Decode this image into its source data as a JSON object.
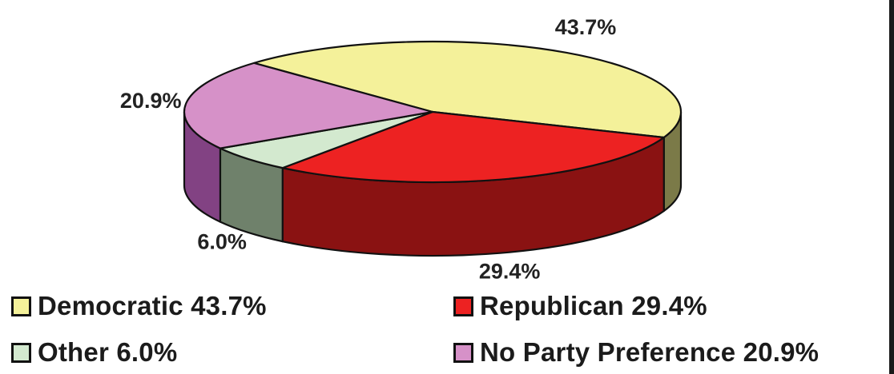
{
  "chart_data": {
    "type": "pie",
    "title": "",
    "slices": [
      {
        "name": "Democratic",
        "value": 43.7,
        "label": "43.7%",
        "legend": "Democratic 43.7%",
        "color": "#f4f19a",
        "side_color": "#7b7a48"
      },
      {
        "name": "Republican",
        "value": 29.4,
        "label": "29.4%",
        "legend": "Republican 29.4%",
        "color": "#ed2222",
        "side_color": "#8a1212"
      },
      {
        "name": "Other",
        "value": 6.0,
        "label": "6.0%",
        "legend": "Other 6.0%",
        "color": "#d3e9cf",
        "side_color": "#6f816b"
      },
      {
        "name": "No Party Preference",
        "value": 20.9,
        "label": "20.9%",
        "legend": "No Party Preference 20.9%",
        "color": "#d691c8",
        "side_color": "#824283"
      }
    ],
    "style": "3d",
    "legend_position": "bottom"
  }
}
